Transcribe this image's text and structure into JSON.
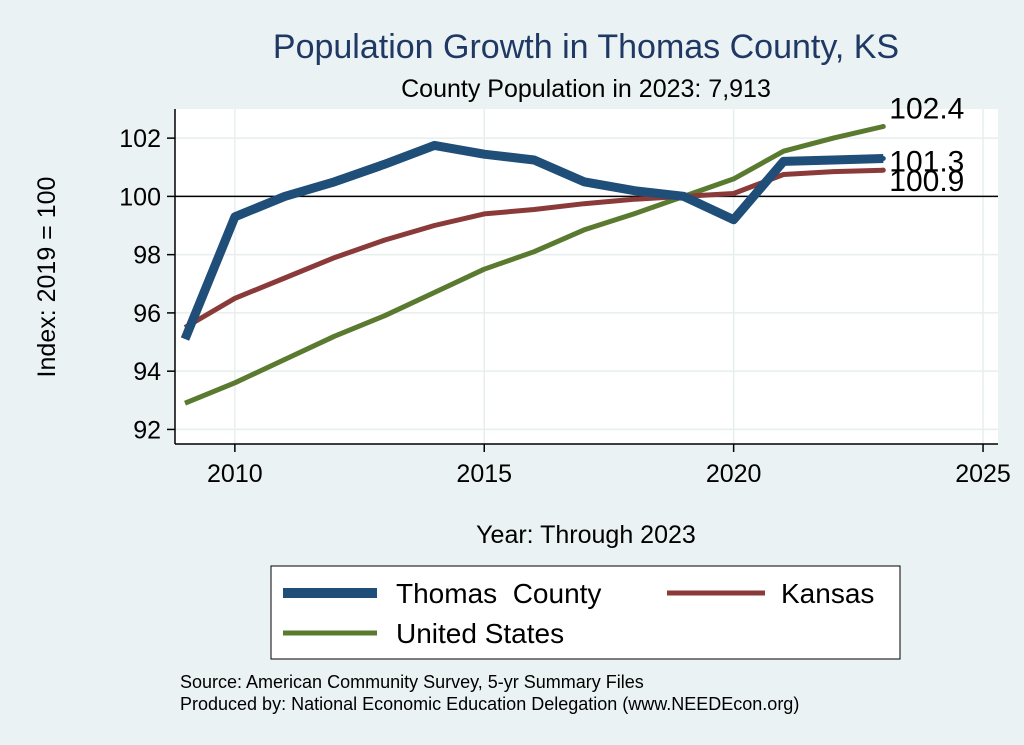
{
  "chart_data": {
    "type": "line",
    "title": "Population Growth in Thomas County, KS",
    "subtitle": "County Population in 2023: 7,913",
    "xlabel": "Year: Through 2023",
    "ylabel": "Index: 2019 = 100",
    "xlim": [
      2008.8,
      2025.3
    ],
    "ylim": [
      91.5,
      103
    ],
    "x_ticks": [
      2010,
      2015,
      2020,
      2025
    ],
    "y_ticks": [
      92,
      94,
      96,
      98,
      100,
      102
    ],
    "reference_line": 100,
    "x": [
      2009,
      2010,
      2011,
      2012,
      2013,
      2014,
      2015,
      2016,
      2017,
      2018,
      2019,
      2020,
      2021,
      2022,
      2023
    ],
    "series": [
      {
        "name": "Thomas  County",
        "color": "#1f4e79",
        "values": [
          95.1,
          99.3,
          100.0,
          100.5,
          101.1,
          101.75,
          101.45,
          101.25,
          100.5,
          100.2,
          100.0,
          99.2,
          101.2,
          101.25,
          101.3
        ],
        "end_label": "101.3"
      },
      {
        "name": "Kansas",
        "color": "#8b3a3a",
        "values": [
          95.5,
          96.5,
          97.2,
          97.9,
          98.5,
          99.0,
          99.4,
          99.55,
          99.75,
          99.9,
          100.0,
          100.1,
          100.75,
          100.85,
          100.9
        ],
        "end_label": "100.9"
      },
      {
        "name": "United States",
        "color": "#5a7a30",
        "values": [
          92.9,
          93.6,
          94.4,
          95.2,
          95.9,
          96.7,
          97.5,
          98.1,
          98.85,
          99.4,
          100.0,
          100.6,
          101.55,
          102.0,
          102.4
        ],
        "end_label": "102.4"
      }
    ],
    "legend": {
      "placement": "bottom",
      "items": [
        "Thomas  County",
        "Kansas",
        "United States"
      ]
    },
    "source_lines": [
      "Source: American Community Survey, 5-yr Summary Files",
      "Produced by: National Economic Education Delegation (www.NEEDEcon.org)"
    ]
  }
}
